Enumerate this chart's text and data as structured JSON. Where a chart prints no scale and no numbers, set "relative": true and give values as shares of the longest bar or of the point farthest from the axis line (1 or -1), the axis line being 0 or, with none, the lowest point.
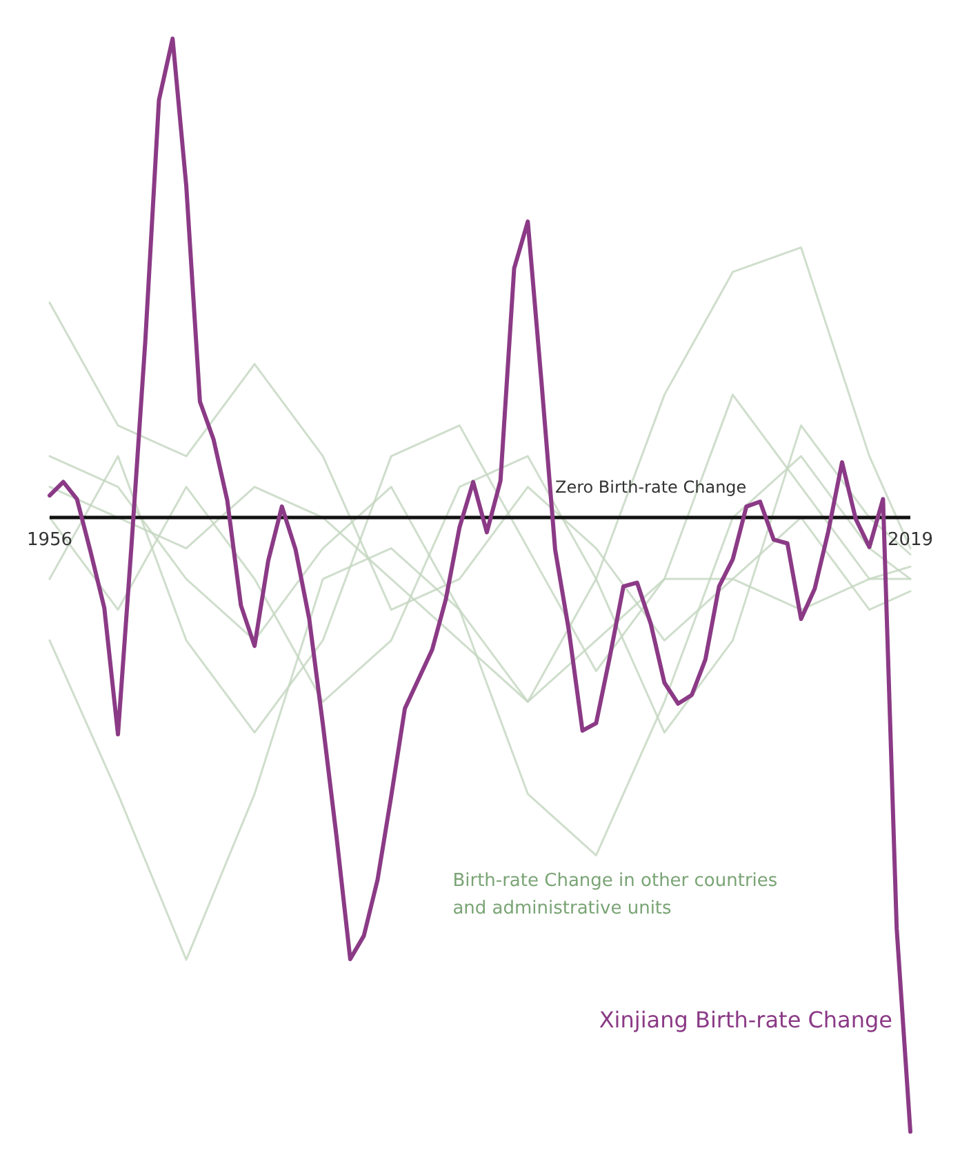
{
  "chart_data": {
    "type": "line",
    "relative": true,
    "x": [
      1956,
      1957,
      1958,
      1959,
      1960,
      1961,
      1962,
      1963,
      1964,
      1965,
      1966,
      1967,
      1968,
      1969,
      1970,
      1971,
      1972,
      1973,
      1974,
      1975,
      1976,
      1977,
      1978,
      1979,
      1980,
      1981,
      1982,
      1983,
      1984,
      1985,
      1986,
      1987,
      1988,
      1989,
      1990,
      1991,
      1992,
      1993,
      1994,
      1995,
      1996,
      1997,
      1998,
      1999,
      2000,
      2001,
      2002,
      2003,
      2004,
      2005,
      2006,
      2007,
      2008,
      2009,
      2010,
      2011,
      2012,
      2013,
      2014,
      2015,
      2016,
      2017,
      2018,
      2019
    ],
    "xlim": [
      1956,
      2019
    ],
    "xticks": [
      1956,
      2019
    ],
    "series": [
      {
        "x": [
          1956,
          1961,
          1966,
          1971,
          1976,
          1981,
          1986,
          1991,
          1996,
          2001,
          2006,
          2011,
          2016,
          2019
        ],
        "color": "#c3d6bf",
        "values": [
          -0.2,
          -0.45,
          -0.72,
          -0.45,
          -0.1,
          -0.05,
          -0.15,
          -0.3,
          -0.2,
          -0.1,
          -0.1,
          -0.15,
          -0.1,
          -0.1
        ]
      },
      {
        "x": [
          1956,
          1961,
          1966,
          1971,
          1976,
          1981,
          1986,
          1991,
          1996,
          2001,
          2006,
          2011,
          2016,
          2019
        ],
        "color": "#c3d6bf",
        "values": [
          0.05,
          0,
          -0.05,
          0.05,
          0,
          -0.1,
          -0.2,
          -0.3,
          -0.1,
          0.2,
          0.4,
          0.44,
          0.1,
          -0.05
        ]
      },
      {
        "x": [
          1956,
          1961,
          1966,
          1971,
          1976,
          1981,
          1986,
          1991,
          1996,
          2001,
          2006,
          2011,
          2016,
          2019
        ],
        "color": "#c3d6bf",
        "values": [
          0.1,
          0.05,
          -0.1,
          -0.2,
          -0.05,
          0.05,
          -0.15,
          -0.45,
          -0.55,
          -0.3,
          0,
          0.1,
          -0.05,
          -0.1
        ]
      },
      {
        "x": [
          1956,
          1961,
          1966,
          1971,
          1976,
          1981,
          1986,
          1991,
          1996,
          2001,
          2006,
          2011,
          2016,
          2019
        ],
        "color": "#c3d6bf",
        "values": [
          0.35,
          0.15,
          0.1,
          0.25,
          0.1,
          -0.15,
          -0.1,
          0.05,
          -0.05,
          -0.2,
          -0.1,
          0,
          -0.15,
          -0.12
        ]
      },
      {
        "x": [
          1956,
          1961,
          1966,
          1971,
          1976,
          1981,
          1986,
          1991,
          1996,
          2001,
          2006,
          2011,
          2016,
          2019
        ],
        "color": "#c3d6bf",
        "values": [
          -0.1,
          0.1,
          -0.2,
          -0.35,
          -0.2,
          0.1,
          0.15,
          -0.05,
          -0.25,
          -0.1,
          0.2,
          0.05,
          -0.1,
          -0.08
        ]
      },
      {
        "x": [
          1956,
          1961,
          1966,
          1971,
          1976,
          1981,
          1986,
          1991,
          1996,
          2001,
          2006,
          2011,
          2016,
          2019
        ],
        "color": "#c3d6bf",
        "values": [
          0,
          -0.15,
          0.05,
          -0.1,
          -0.3,
          -0.2,
          0.05,
          0.1,
          -0.1,
          -0.35,
          -0.2,
          0.15,
          0,
          -0.06
        ]
      },
      {
        "name": "Xinjiang Birth-rate Change",
        "color": "#8b3a86",
        "values": [
          0.036,
          0.058,
          0.03,
          -0.056,
          -0.147,
          -0.353,
          -0.042,
          0.287,
          0.68,
          0.78,
          0.54,
          0.189,
          0.127,
          0.028,
          -0.143,
          -0.209,
          -0.07,
          0.018,
          -0.052,
          -0.165,
          -0.337,
          -0.52,
          -0.719,
          -0.681,
          -0.59,
          -0.454,
          -0.311,
          -0.263,
          -0.215,
          -0.133,
          -0.016,
          0.058,
          -0.024,
          0.06,
          0.406,
          0.482,
          0.221,
          -0.052,
          -0.183,
          -0.347,
          -0.335,
          -0.227,
          -0.112,
          -0.106,
          -0.173,
          -0.269,
          -0.303,
          -0.289,
          -0.231,
          -0.112,
          -0.068,
          0.018,
          0.026,
          -0.036,
          -0.042,
          -0.165,
          -0.116,
          -0.022,
          0.09,
          -0.002,
          -0.048,
          0.03,
          -0.669,
          -1.0
        ]
      }
    ],
    "annotations": [
      "Zero Birth-rate Change",
      "Birth-rate Change in other countries and administrative units"
    ],
    "legend": false,
    "grid": false
  }
}
